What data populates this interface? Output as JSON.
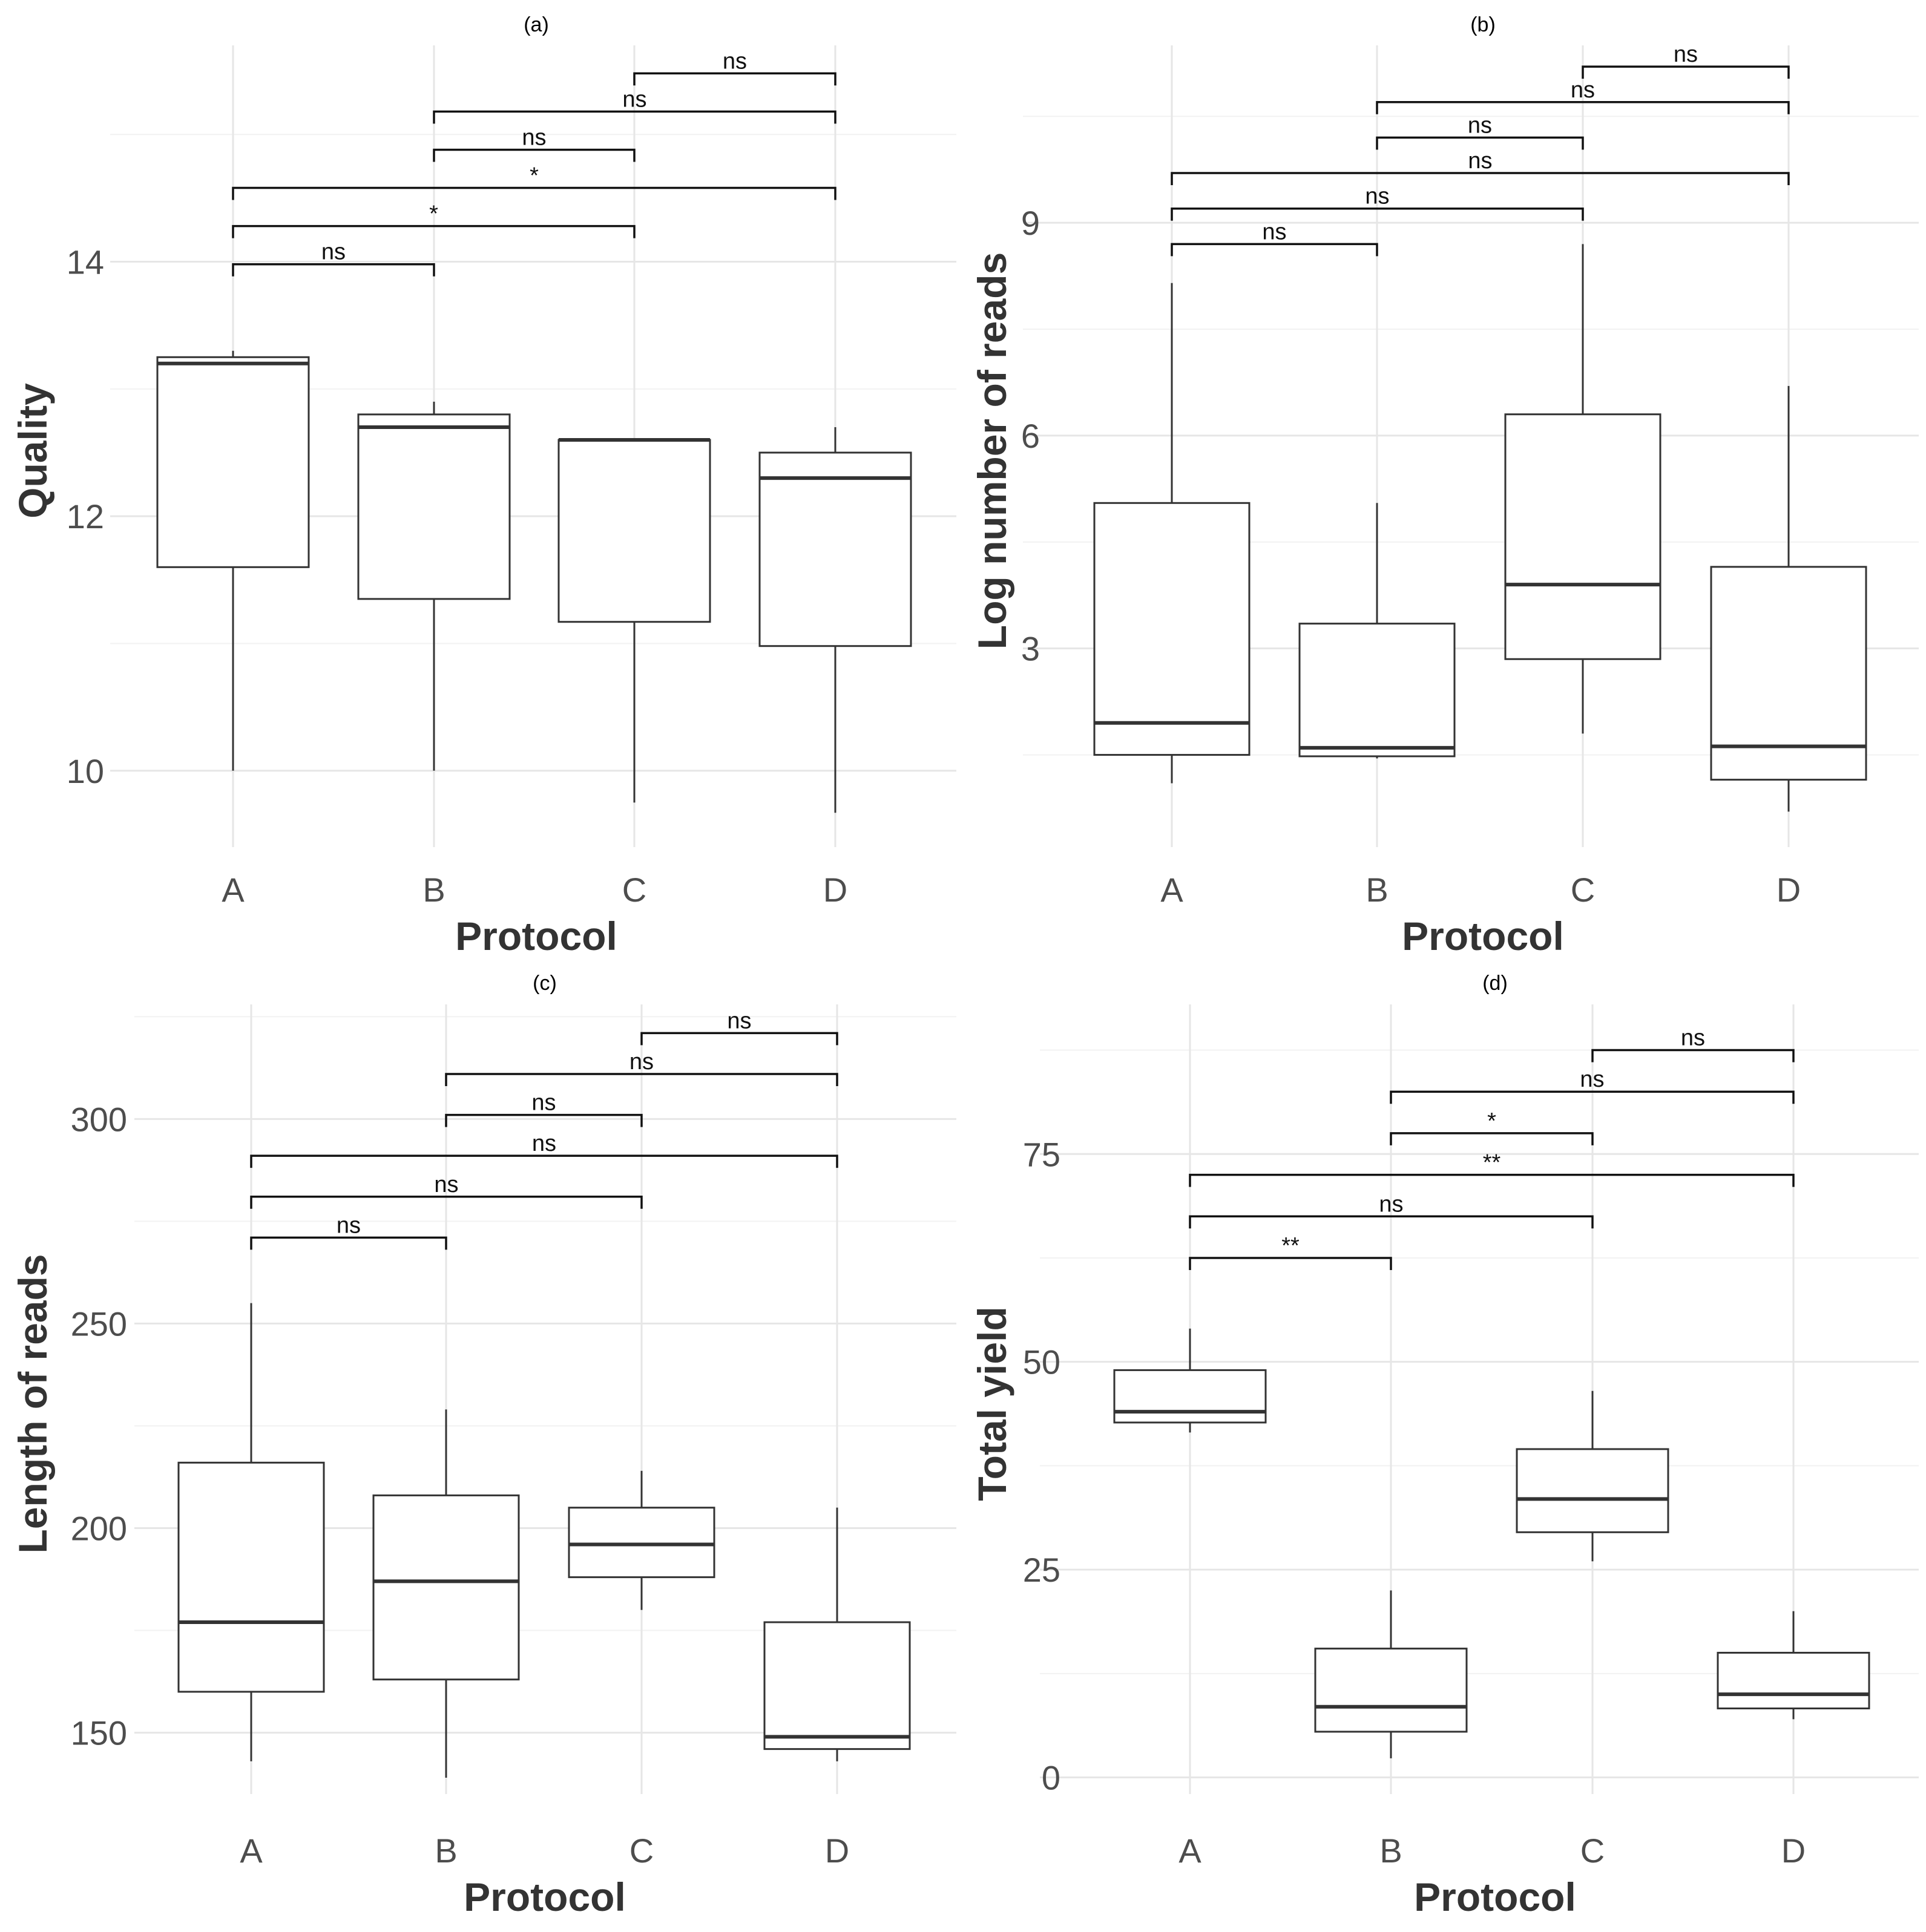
{
  "chart_data": [
    {
      "panel": "(a)",
      "type": "boxplot",
      "title": "(a)",
      "xlabel": "Protocol",
      "ylabel": "Quality",
      "categories": [
        "A",
        "B",
        "C",
        "D"
      ],
      "yticks": [
        10,
        12,
        14
      ],
      "ylim": [
        9.4,
        15.7
      ],
      "boxes": [
        {
          "category": "A",
          "min": 10.0,
          "q1": 11.6,
          "median": 13.2,
          "q3": 13.25,
          "max": 13.3
        },
        {
          "category": "B",
          "min": 10.0,
          "q1": 11.35,
          "median": 12.7,
          "q3": 12.8,
          "max": 12.9
        },
        {
          "category": "C",
          "min": 9.75,
          "q1": 11.17,
          "median": 12.6,
          "q3": 12.6,
          "max": 12.6
        },
        {
          "category": "D",
          "min": 9.67,
          "q1": 10.98,
          "median": 12.3,
          "q3": 12.5,
          "max": 12.7
        }
      ],
      "comparisons": [
        {
          "from": "A",
          "to": "B",
          "y": 13.98,
          "label": "ns"
        },
        {
          "from": "A",
          "to": "C",
          "y": 14.28,
          "label": "*"
        },
        {
          "from": "A",
          "to": "D",
          "y": 14.58,
          "label": "*"
        },
        {
          "from": "B",
          "to": "C",
          "y": 14.88,
          "label": "ns"
        },
        {
          "from": "B",
          "to": "D",
          "y": 15.18,
          "label": "ns"
        },
        {
          "from": "C",
          "to": "D",
          "y": 15.48,
          "label": "ns"
        }
      ]
    },
    {
      "panel": "(b)",
      "type": "boxplot",
      "title": "(b)",
      "xlabel": "Protocol",
      "ylabel": "Log number of reads",
      "categories": [
        "A",
        "B",
        "C",
        "D"
      ],
      "yticks": [
        3,
        6,
        9
      ],
      "ylim": [
        0.2,
        11.5
      ],
      "boxes": [
        {
          "category": "A",
          "min": 1.1,
          "q1": 1.5,
          "median": 1.95,
          "q3": 5.05,
          "max": 8.15
        },
        {
          "category": "B",
          "min": 1.45,
          "q1": 1.48,
          "median": 1.6,
          "q3": 3.35,
          "max": 5.05
        },
        {
          "category": "C",
          "min": 1.8,
          "q1": 2.85,
          "median": 3.9,
          "q3": 6.3,
          "max": 8.7
        },
        {
          "category": "D",
          "min": 0.7,
          "q1": 1.15,
          "median": 1.62,
          "q3": 4.15,
          "max": 6.7
        }
      ],
      "comparisons": [
        {
          "from": "A",
          "to": "B",
          "y": 8.7,
          "label": "ns"
        },
        {
          "from": "A",
          "to": "C",
          "y": 9.2,
          "label": "ns"
        },
        {
          "from": "A",
          "to": "D",
          "y": 9.7,
          "label": "ns"
        },
        {
          "from": "B",
          "to": "C",
          "y": 10.2,
          "label": "ns"
        },
        {
          "from": "B",
          "to": "D",
          "y": 10.7,
          "label": "ns"
        },
        {
          "from": "C",
          "to": "D",
          "y": 11.2,
          "label": "ns"
        }
      ]
    },
    {
      "panel": "(c)",
      "type": "boxplot",
      "title": "(c)",
      "xlabel": "Protocol",
      "ylabel": "Length of reads",
      "categories": [
        "A",
        "B",
        "C",
        "D"
      ],
      "yticks": [
        150,
        200,
        250,
        300
      ],
      "ylim": [
        135,
        328
      ],
      "boxes": [
        {
          "category": "A",
          "min": 143,
          "q1": 160,
          "median": 177,
          "q3": 216,
          "max": 255
        },
        {
          "category": "B",
          "min": 139,
          "q1": 163,
          "median": 187,
          "q3": 208,
          "max": 229
        },
        {
          "category": "C",
          "min": 180,
          "q1": 188,
          "median": 196,
          "q3": 205,
          "max": 214
        },
        {
          "category": "D",
          "min": 143,
          "q1": 146,
          "median": 149,
          "q3": 177,
          "max": 205
        }
      ],
      "comparisons": [
        {
          "from": "A",
          "to": "B",
          "y": 271,
          "label": "ns"
        },
        {
          "from": "A",
          "to": "C",
          "y": 281,
          "label": "ns"
        },
        {
          "from": "A",
          "to": "D",
          "y": 291,
          "label": "ns"
        },
        {
          "from": "B",
          "to": "C",
          "y": 301,
          "label": "ns"
        },
        {
          "from": "B",
          "to": "D",
          "y": 311,
          "label": "ns"
        },
        {
          "from": "C",
          "to": "D",
          "y": 321,
          "label": "ns"
        }
      ]
    },
    {
      "panel": "(d)",
      "type": "boxplot",
      "title": "(d)",
      "xlabel": "Protocol",
      "ylabel": "Total yield",
      "categories": [
        "A",
        "B",
        "C",
        "D"
      ],
      "yticks": [
        0,
        25,
        50,
        75
      ],
      "ylim": [
        -2,
        93
      ],
      "boxes": [
        {
          "category": "A",
          "min": 41.5,
          "q1": 42.7,
          "median": 44.0,
          "q3": 49.0,
          "max": 54.0
        },
        {
          "category": "B",
          "min": 2.3,
          "q1": 5.5,
          "median": 8.5,
          "q3": 15.5,
          "max": 22.5
        },
        {
          "category": "C",
          "min": 26.0,
          "q1": 29.5,
          "median": 33.5,
          "q3": 39.5,
          "max": 46.5
        },
        {
          "category": "D",
          "min": 7.0,
          "q1": 8.3,
          "median": 10.0,
          "q3": 15.0,
          "max": 20.0
        }
      ],
      "comparisons": [
        {
          "from": "A",
          "to": "B",
          "y": 62.5,
          "label": "**"
        },
        {
          "from": "A",
          "to": "C",
          "y": 67.5,
          "label": "ns"
        },
        {
          "from": "A",
          "to": "D",
          "y": 72.5,
          "label": "**"
        },
        {
          "from": "B",
          "to": "C",
          "y": 77.5,
          "label": "*"
        },
        {
          "from": "B",
          "to": "D",
          "y": 82.5,
          "label": "ns"
        },
        {
          "from": "C",
          "to": "D",
          "y": 87.5,
          "label": "ns"
        }
      ]
    }
  ]
}
